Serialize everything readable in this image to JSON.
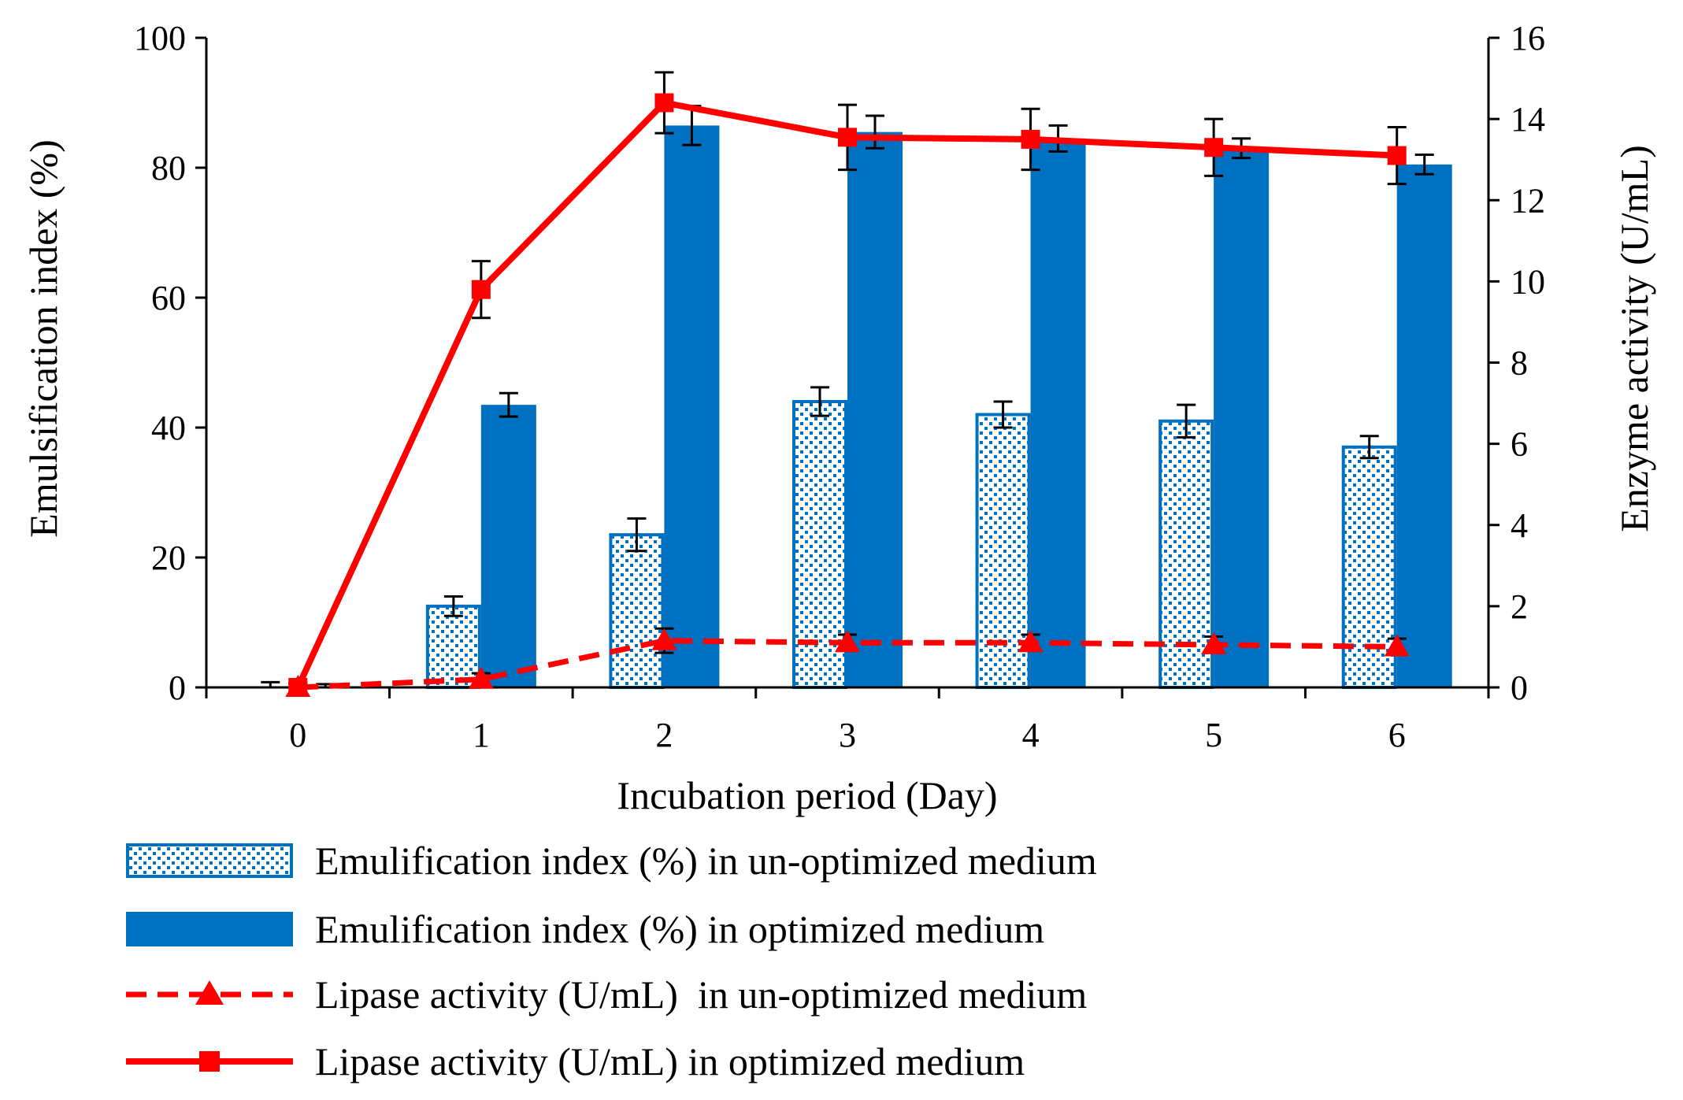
{
  "chart_data": {
    "type": "bar",
    "title": "",
    "xlabel": "Incubation period (Day)",
    "ylabel_left": "Emulsification index (%)",
    "ylabel_right": "Enzyme activity (U/mL)",
    "categories": [
      "0",
      "1",
      "2",
      "3",
      "4",
      "5",
      "6"
    ],
    "ylim_left": [
      0,
      100
    ],
    "yticks_left": [
      "0",
      "20",
      "40",
      "60",
      "80",
      "100"
    ],
    "ylim_right": [
      0,
      16
    ],
    "yticks_right": [
      "0",
      "2",
      "4",
      "6",
      "8",
      "10",
      "12",
      "14",
      "16"
    ],
    "grid": false,
    "legend_position": "bottom",
    "colors": {
      "bar_optimized": "#0070C0",
      "bar_unoptimized_outline": "#0070C0",
      "bar_unoptimized_fill": "#ffffff",
      "line": "#FF0000",
      "axis": "#000000"
    },
    "series": [
      {
        "name": "Emulification index (%) in un-optimized medium",
        "kind": "bar",
        "axis": "left",
        "style": "dotted",
        "values": [
          0,
          12.5,
          23.5,
          44,
          42,
          41,
          37
        ],
        "errors": [
          0.8,
          1.5,
          2.5,
          2.2,
          2.0,
          2.5,
          1.7
        ]
      },
      {
        "name": "Emulification index (%) in optimized medium",
        "kind": "bar",
        "axis": "left",
        "style": "solid",
        "values": [
          0,
          43.5,
          86.5,
          85.5,
          84.5,
          83,
          80.5
        ],
        "errors": [
          0.5,
          1.8,
          3.0,
          2.5,
          2.0,
          1.5,
          1.5
        ]
      },
      {
        "name": "Lipase activity (U/mL)  in un-optimized medium",
        "kind": "line",
        "axis": "right",
        "style": "dashed",
        "marker": "triangle",
        "values": [
          0,
          0.2,
          1.15,
          1.1,
          1.1,
          1.05,
          1.0
        ],
        "errors": [
          0.1,
          0.15,
          0.3,
          0.2,
          0.2,
          0.2,
          0.2
        ]
      },
      {
        "name": "Lipase activity (U/mL) in optimized medium",
        "kind": "line",
        "axis": "right",
        "style": "solid",
        "marker": "square",
        "values": [
          0,
          9.8,
          14.4,
          13.55,
          13.5,
          13.3,
          13.1
        ],
        "errors": [
          0.1,
          0.7,
          0.75,
          0.8,
          0.75,
          0.7,
          0.7
        ]
      }
    ]
  }
}
